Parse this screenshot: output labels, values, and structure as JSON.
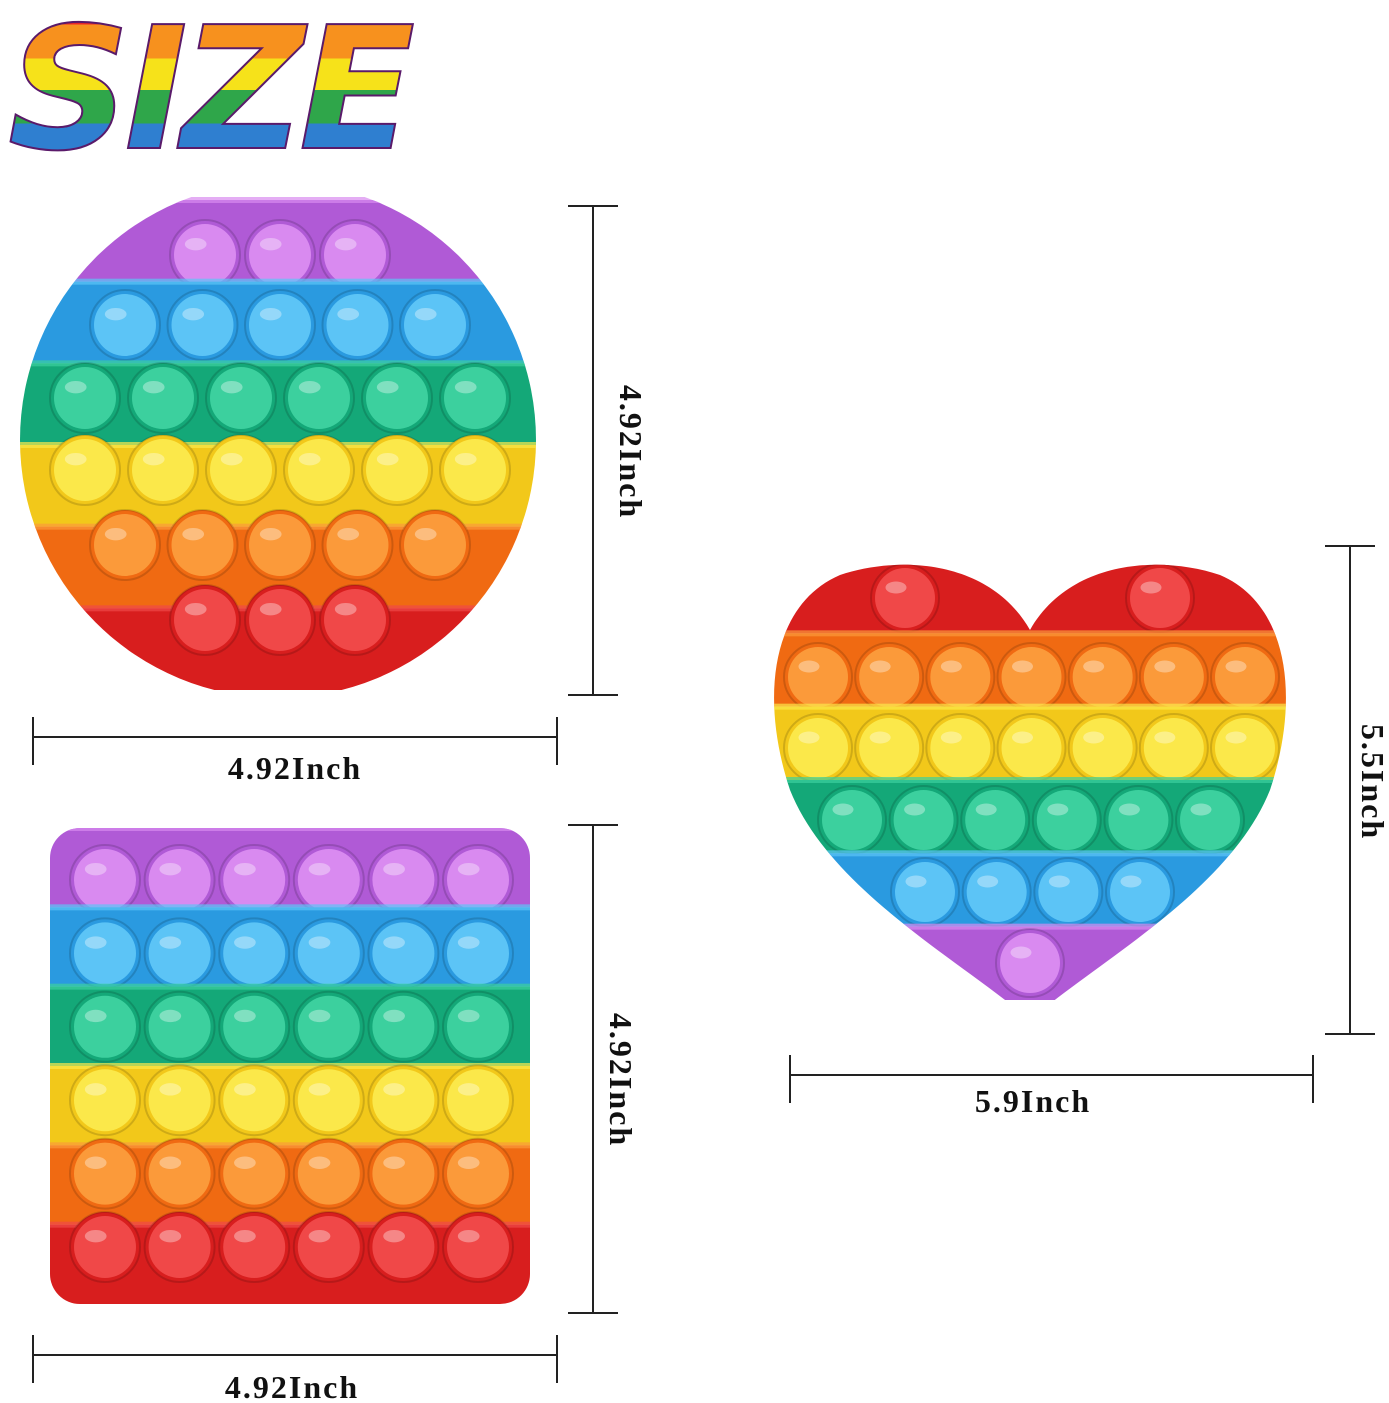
{
  "title": "SIZE",
  "circle": {
    "height": "4.92Inch",
    "width": "4.92Inch"
  },
  "square": {
    "height": "4.92Inch",
    "width": "4.92Inch"
  },
  "heart": {
    "height": "5.5Inch",
    "width": "5.9Inch"
  }
}
